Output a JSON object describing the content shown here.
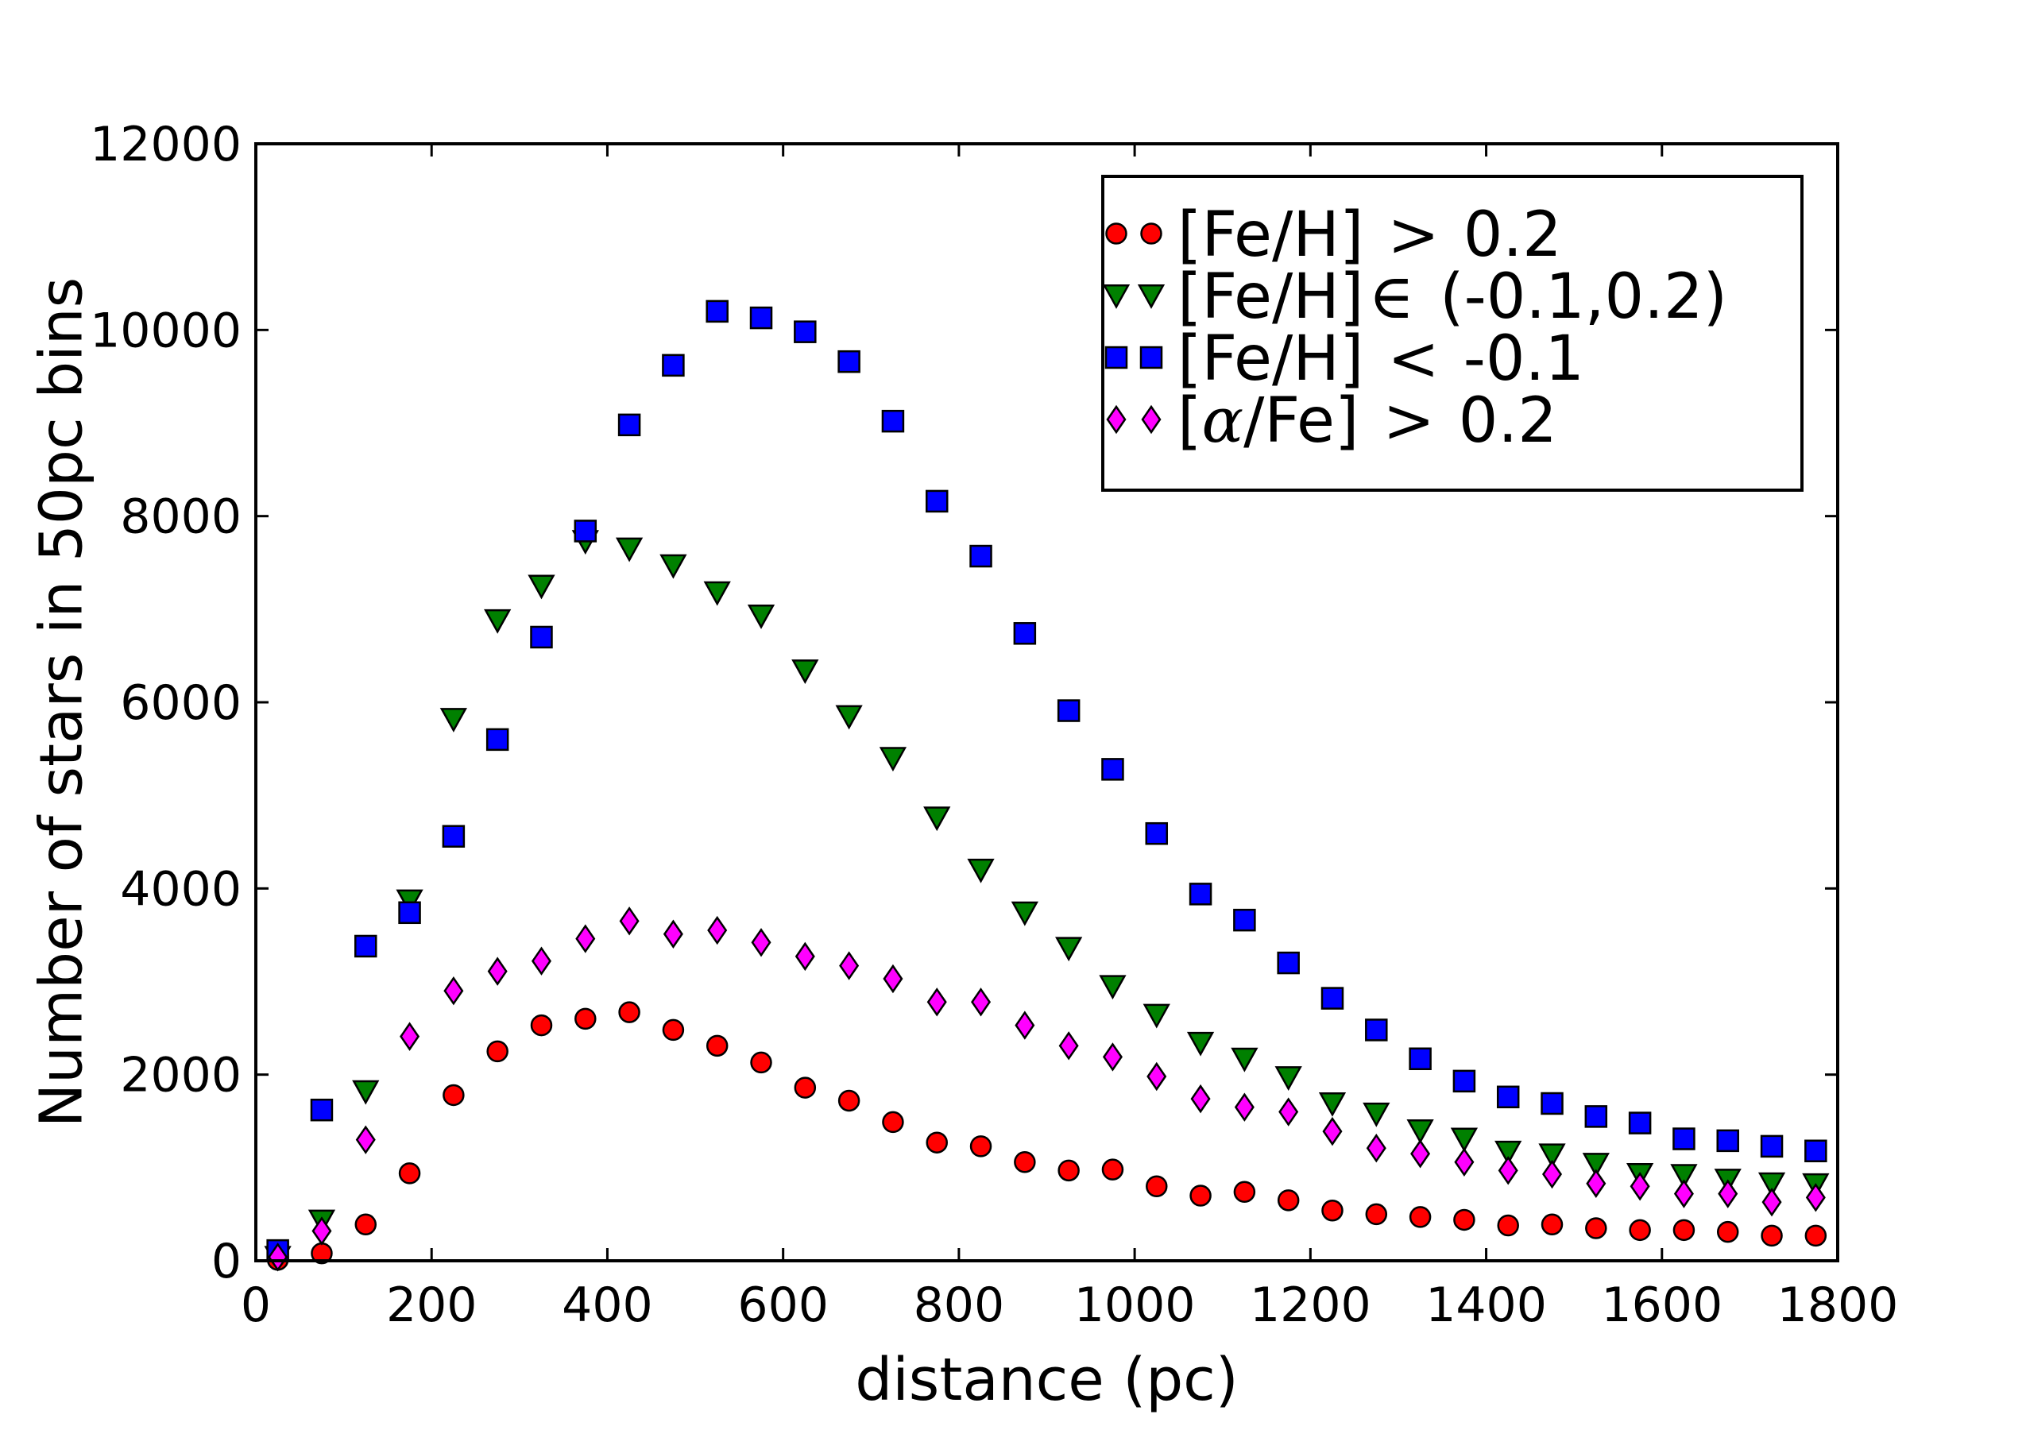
{
  "chart_data": {
    "type": "scatter",
    "xlabel": "distance (pc)",
    "ylabel": "Number of stars in 50pc bins",
    "xlim": [
      0,
      1800
    ],
    "ylim": [
      0,
      12000
    ],
    "x_ticks": [
      0,
      200,
      400,
      600,
      800,
      1000,
      1200,
      1400,
      1600,
      1800
    ],
    "y_ticks": [
      0,
      2000,
      4000,
      6000,
      8000,
      10000,
      12000
    ],
    "x_tick_labels": [
      "0",
      "200",
      "400",
      "600",
      "800",
      "1000",
      "1200",
      "1400",
      "1600",
      "1800"
    ],
    "y_tick_labels": [
      "0",
      "2000",
      "4000",
      "6000",
      "8000",
      "10000",
      "12000"
    ],
    "grid": false,
    "legend_position": "top-right",
    "x": [
      25,
      75,
      125,
      175,
      225,
      275,
      325,
      375,
      425,
      475,
      525,
      575,
      625,
      675,
      725,
      775,
      825,
      875,
      925,
      975,
      1025,
      1075,
      1125,
      1175,
      1225,
      1275,
      1325,
      1375,
      1425,
      1475,
      1525,
      1575,
      1625,
      1675,
      1725,
      1775
    ],
    "series": [
      {
        "name": "fe_h_gt_0_2",
        "legend": {
          "prefix": "[Fe/H]",
          "symbol": ">",
          "suffix": "0.2"
        },
        "marker": "circle",
        "color": "#ff0000",
        "values": [
          10,
          80,
          390,
          940,
          1780,
          2250,
          2530,
          2600,
          2670,
          2480,
          2310,
          2130,
          1860,
          1720,
          1490,
          1270,
          1230,
          1060,
          970,
          980,
          800,
          700,
          740,
          650,
          540,
          500,
          470,
          440,
          380,
          390,
          350,
          330,
          330,
          310,
          270,
          270
        ]
      },
      {
        "name": "fe_h_between",
        "legend": {
          "prefix": "[Fe/H]",
          "symbol": "∈",
          "suffix": "(-0.1,0.2)"
        },
        "marker": "triangle-down",
        "color": "#008000",
        "values": [
          40,
          430,
          1820,
          3870,
          5820,
          6880,
          7250,
          7730,
          7650,
          7470,
          7180,
          6930,
          6340,
          5850,
          5400,
          4760,
          4200,
          3740,
          3360,
          2950,
          2640,
          2340,
          2170,
          1970,
          1690,
          1580,
          1400,
          1310,
          1170,
          1140,
          1040,
          930,
          920,
          870,
          830,
          820
        ]
      },
      {
        "name": "fe_h_lt_minus_0_1",
        "legend": {
          "prefix": "[Fe/H]",
          "symbol": "<",
          "suffix": "-0.1"
        },
        "marker": "square",
        "color": "#0000ff",
        "values": [
          110,
          1620,
          3380,
          3740,
          4560,
          5600,
          6700,
          7840,
          8980,
          9620,
          10200,
          10130,
          9980,
          9660,
          9020,
          8160,
          7570,
          6740,
          5910,
          5280,
          4590,
          3940,
          3660,
          3200,
          2820,
          2480,
          2170,
          1930,
          1760,
          1690,
          1550,
          1480,
          1310,
          1290,
          1230,
          1180
        ]
      },
      {
        "name": "alpha_fe_gt_0_2",
        "legend": {
          "prefix": "[",
          "math": "α",
          "mid": "/Fe]",
          "symbol": ">",
          "suffix": "0.2"
        },
        "marker": "diamond",
        "color": "#ff00ff",
        "values": [
          40,
          320,
          1300,
          2410,
          2900,
          3110,
          3220,
          3460,
          3650,
          3510,
          3550,
          3420,
          3270,
          3170,
          3030,
          2780,
          2780,
          2530,
          2310,
          2190,
          1980,
          1740,
          1650,
          1600,
          1390,
          1210,
          1150,
          1060,
          970,
          930,
          830,
          800,
          720,
          720,
          630,
          680
        ]
      }
    ]
  }
}
